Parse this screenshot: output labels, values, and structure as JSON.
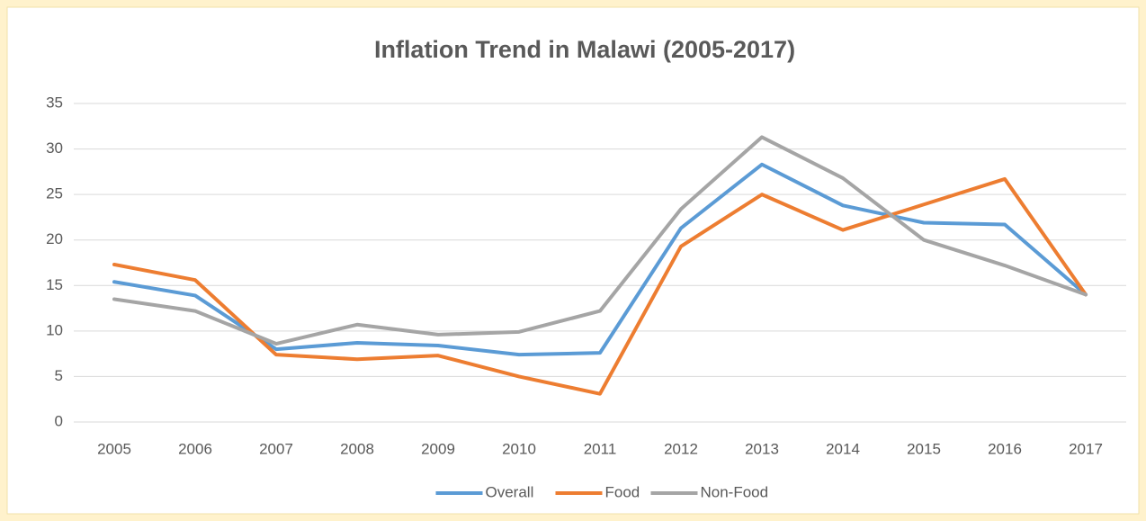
{
  "chart_data": {
    "type": "line",
    "title": "Inflation Trend in Malawi (2005-2017)",
    "categories": [
      "2005",
      "2006",
      "2007",
      "2008",
      "2009",
      "2010",
      "2011",
      "2012",
      "2013",
      "2014",
      "2015",
      "2016",
      "2017"
    ],
    "series": [
      {
        "name": "Overall",
        "color": "#5b9bd5",
        "values": [
          15.4,
          13.9,
          8.0,
          8.7,
          8.4,
          7.4,
          7.6,
          21.3,
          28.3,
          23.8,
          21.9,
          21.7,
          14.0
        ]
      },
      {
        "name": "Food",
        "color": "#ed7d31",
        "values": [
          17.3,
          15.6,
          7.4,
          6.9,
          7.3,
          5.0,
          3.1,
          19.3,
          25.0,
          21.1,
          23.9,
          26.7,
          14.0
        ]
      },
      {
        "name": "Non-Food",
        "color": "#a5a5a5",
        "values": [
          13.5,
          12.2,
          8.6,
          10.7,
          9.6,
          9.9,
          12.2,
          23.4,
          31.3,
          26.8,
          20.0,
          17.2,
          14.0
        ]
      }
    ],
    "ylim": [
      0,
      35
    ],
    "yticks": [
      0,
      5,
      10,
      15,
      20,
      25,
      30,
      35
    ],
    "grid": true,
    "legend": "bottom"
  }
}
